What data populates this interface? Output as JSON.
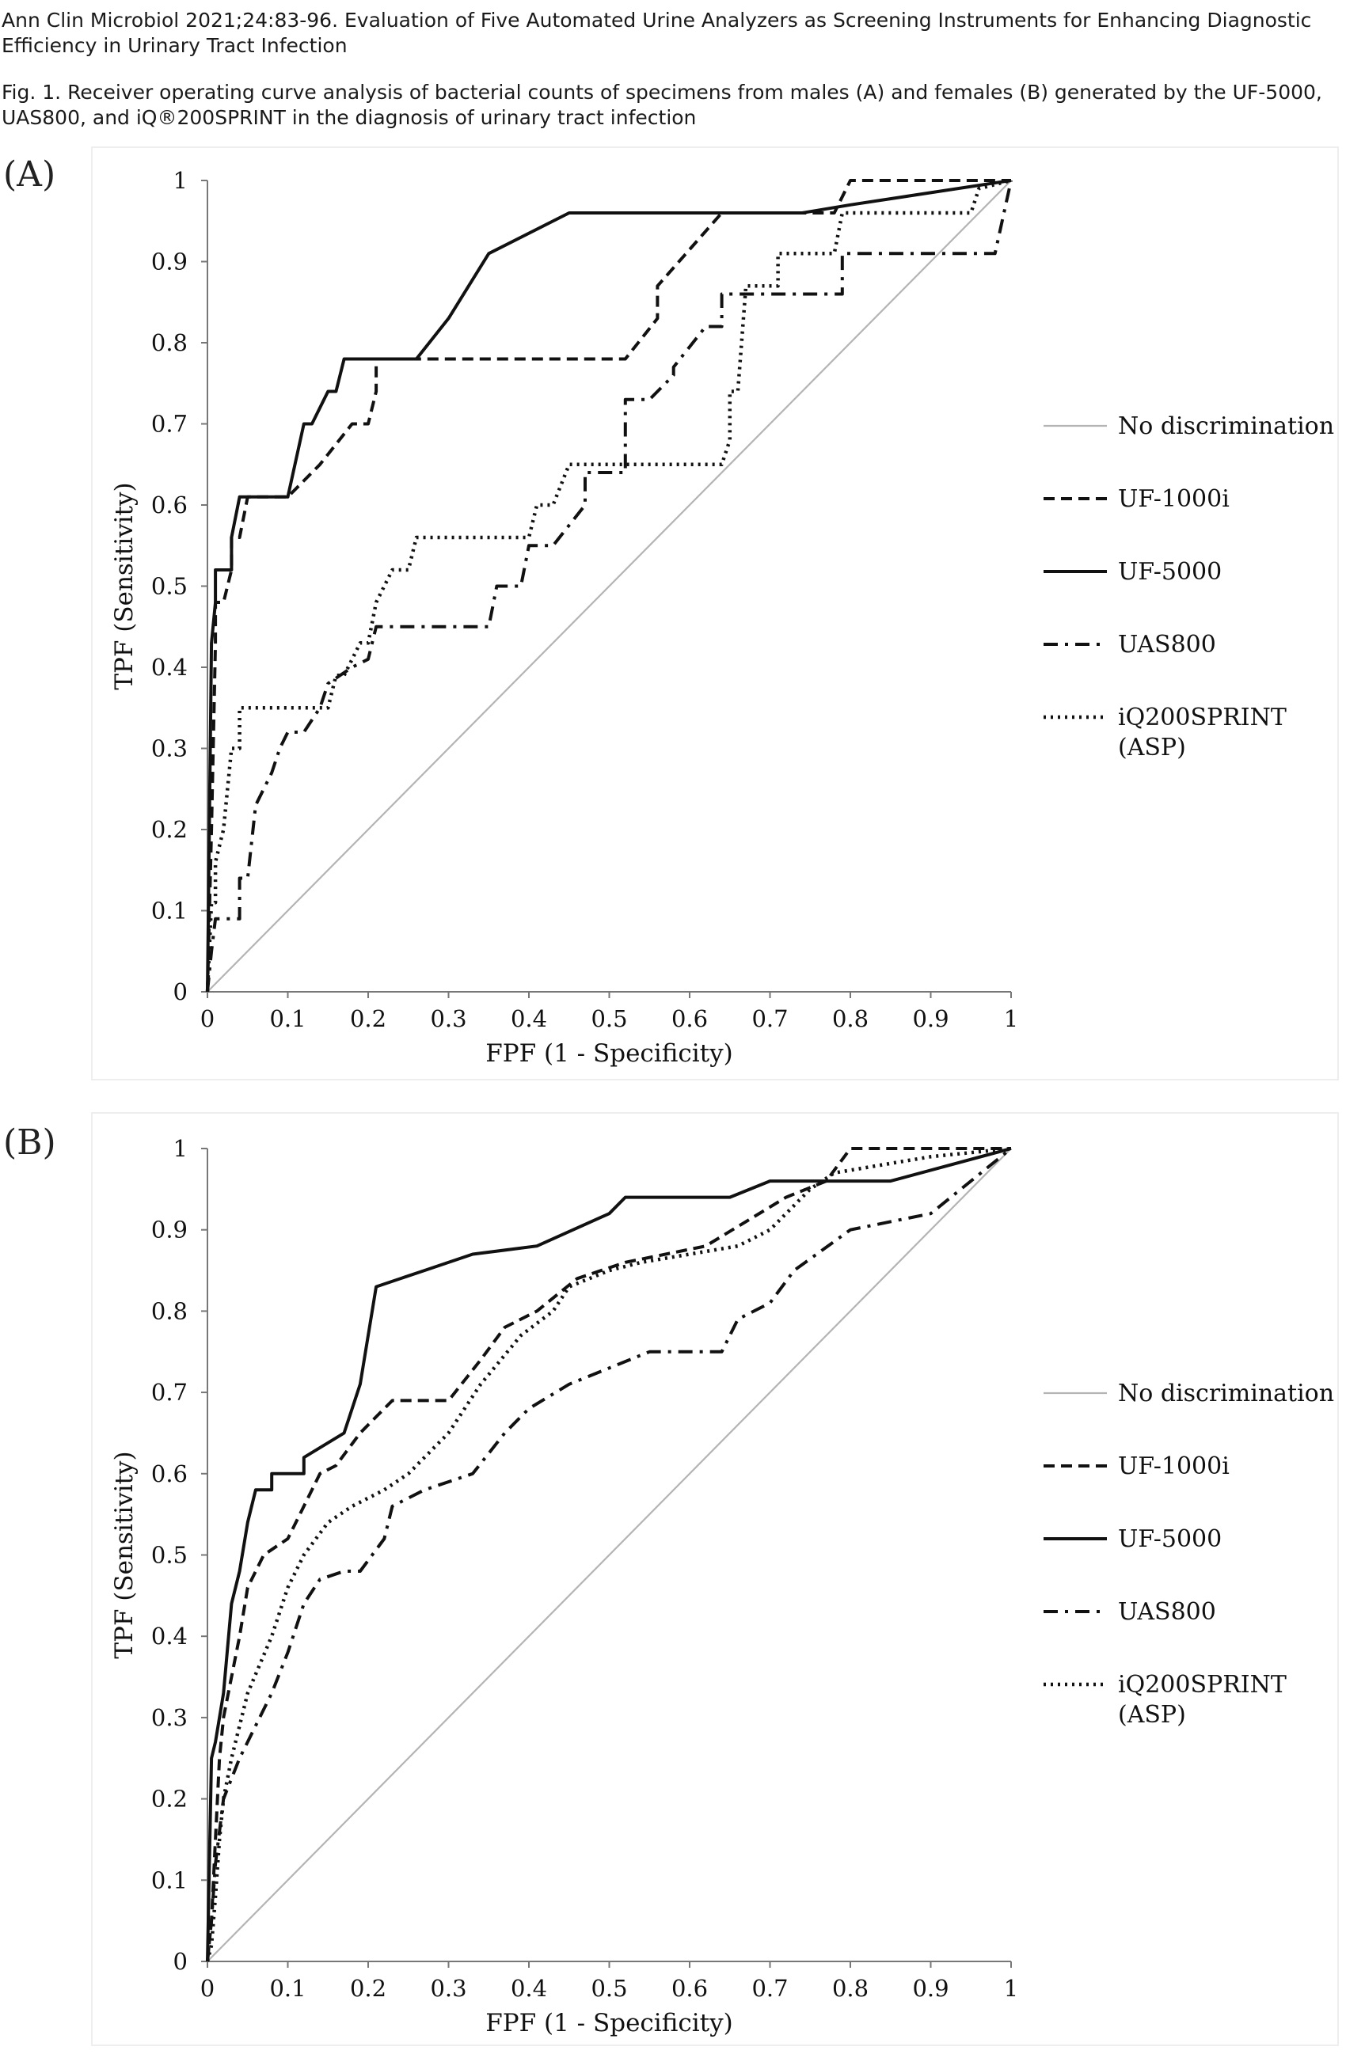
{
  "header": {
    "citation": "Ann Clin Microbiol 2021;24:83-96. Evaluation of Five Automated Urine Analyzers as Screening Instruments for Enhancing Diagnostic Efficiency in Urinary Tract Infection",
    "caption": "Fig. 1. Receiver operating curve analysis of bacterial counts of specimens from males (A) and females (B) generated by the UF-5000, UAS800, and iQ®200SPRINT in the diagnosis of urinary tract infection"
  },
  "chart_data": [
    {
      "panel": "(A)",
      "type": "line",
      "xlabel": "FPF (1 - Specificity)",
      "ylabel": "TPF (Sensitivity)",
      "xlim": [
        0,
        1
      ],
      "ylim": [
        0,
        1
      ],
      "xticks": [
        "0",
        "0.1",
        "0.2",
        "0.3",
        "0.4",
        "0.5",
        "0.6",
        "0.7",
        "0.8",
        "0.9",
        "1"
      ],
      "yticks": [
        "0",
        "0.1",
        "0.2",
        "0.3",
        "0.4",
        "0.5",
        "0.6",
        "0.7",
        "0.8",
        "0.9",
        "1"
      ],
      "grid": false,
      "legend_position": "right",
      "legend_lines": [
        [
          "No discrimination"
        ],
        [
          "UF-1000i"
        ],
        [
          "UF-5000"
        ],
        [
          "UAS800"
        ],
        [
          "iQ200SPRINT",
          "(ASP)"
        ]
      ],
      "series": [
        {
          "name": "No discrimination",
          "style": "solid-gray",
          "x": [
            0,
            1
          ],
          "y": [
            0,
            1
          ]
        },
        {
          "name": "UF-1000i",
          "style": "dashed",
          "x": [
            0,
            0.005,
            0.01,
            0.01,
            0.02,
            0.03,
            0.03,
            0.04,
            0.05,
            0.06,
            0.1,
            0.1,
            0.14,
            0.14,
            0.18,
            0.18,
            0.2,
            0.2,
            0.21,
            0.21,
            0.52,
            0.56,
            0.56,
            0.64,
            0.78,
            0.8,
            0.96,
            1
          ],
          "y": [
            0,
            0.2,
            0.43,
            0.48,
            0.48,
            0.52,
            0.56,
            0.56,
            0.61,
            0.61,
            0.61,
            0.61,
            0.65,
            0.65,
            0.7,
            0.7,
            0.7,
            0.7,
            0.74,
            0.78,
            0.78,
            0.83,
            0.87,
            0.96,
            0.96,
            1,
            1,
            1
          ]
        },
        {
          "name": "UF-5000",
          "style": "solid",
          "x": [
            0,
            0.005,
            0.01,
            0.01,
            0.03,
            0.03,
            0.04,
            0.04,
            0.1,
            0.1,
            0.12,
            0.13,
            0.15,
            0.16,
            0.17,
            0.18,
            0.26,
            0.3,
            0.35,
            0.45,
            0.74,
            0.8,
            1
          ],
          "y": [
            0,
            0.43,
            0.48,
            0.52,
            0.52,
            0.56,
            0.61,
            0.61,
            0.61,
            0.61,
            0.7,
            0.7,
            0.74,
            0.74,
            0.78,
            0.78,
            0.78,
            0.83,
            0.91,
            0.96,
            0.96,
            0.97,
            1
          ]
        },
        {
          "name": "UAS800",
          "style": "dashdot",
          "x": [
            0,
            0.005,
            0.01,
            0.02,
            0.04,
            0.04,
            0.05,
            0.06,
            0.08,
            0.09,
            0.1,
            0.12,
            0.14,
            0.15,
            0.18,
            0.2,
            0.21,
            0.21,
            0.3,
            0.35,
            0.36,
            0.39,
            0.4,
            0.43,
            0.47,
            0.47,
            0.52,
            0.52,
            0.55,
            0.58,
            0.58,
            0.62,
            0.64,
            0.64,
            0.67,
            0.72,
            0.79,
            0.79,
            0.98,
            1
          ],
          "y": [
            0,
            0.05,
            0.09,
            0.09,
            0.09,
            0.14,
            0.14,
            0.23,
            0.27,
            0.3,
            0.32,
            0.32,
            0.35,
            0.38,
            0.4,
            0.41,
            0.45,
            0.45,
            0.45,
            0.45,
            0.5,
            0.5,
            0.55,
            0.55,
            0.6,
            0.64,
            0.64,
            0.73,
            0.73,
            0.76,
            0.77,
            0.82,
            0.82,
            0.86,
            0.86,
            0.86,
            0.86,
            0.91,
            0.91,
            1
          ]
        },
        {
          "name": "iQ200SPRINT (ASP)",
          "style": "dotted",
          "x": [
            0,
            0.005,
            0.01,
            0.01,
            0.02,
            0.03,
            0.04,
            0.04,
            0.1,
            0.15,
            0.16,
            0.17,
            0.19,
            0.2,
            0.21,
            0.23,
            0.25,
            0.26,
            0.36,
            0.4,
            0.41,
            0.43,
            0.45,
            0.52,
            0.57,
            0.6,
            0.64,
            0.65,
            0.65,
            0.66,
            0.67,
            0.71,
            0.71,
            0.78,
            0.79,
            0.95,
            0.96,
            1
          ],
          "y": [
            0,
            0.11,
            0.11,
            0.16,
            0.2,
            0.3,
            0.3,
            0.35,
            0.35,
            0.35,
            0.39,
            0.39,
            0.43,
            0.43,
            0.48,
            0.52,
            0.52,
            0.56,
            0.56,
            0.56,
            0.6,
            0.6,
            0.65,
            0.65,
            0.65,
            0.65,
            0.65,
            0.68,
            0.74,
            0.74,
            0.87,
            0.87,
            0.91,
            0.91,
            0.96,
            0.96,
            0.99,
            1
          ]
        }
      ]
    },
    {
      "panel": "(B)",
      "type": "line",
      "xlabel": "FPF (1 - Specificity)",
      "ylabel": "TPF (Sensitivity)",
      "xlim": [
        0,
        1
      ],
      "ylim": [
        0,
        1
      ],
      "xticks": [
        "0",
        "0.1",
        "0.2",
        "0.3",
        "0.4",
        "0.5",
        "0.6",
        "0.7",
        "0.8",
        "0.9",
        "1"
      ],
      "yticks": [
        "0",
        "0.1",
        "0.2",
        "0.3",
        "0.4",
        "0.5",
        "0.6",
        "0.7",
        "0.8",
        "0.9",
        "1"
      ],
      "grid": false,
      "legend_position": "right",
      "legend_lines": [
        [
          "No discrimination"
        ],
        [
          "UF-1000i"
        ],
        [
          "UF-5000"
        ],
        [
          "UAS800"
        ],
        [
          "iQ200SPRINT",
          "(ASP)"
        ]
      ],
      "series": [
        {
          "name": "No discrimination",
          "style": "solid-gray",
          "x": [
            0,
            1
          ],
          "y": [
            0,
            1
          ]
        },
        {
          "name": "UF-1000i",
          "style": "dashed",
          "x": [
            0,
            0.005,
            0.01,
            0.015,
            0.02,
            0.03,
            0.04,
            0.05,
            0.07,
            0.1,
            0.12,
            0.14,
            0.16,
            0.19,
            0.21,
            0.23,
            0.3,
            0.34,
            0.37,
            0.41,
            0.46,
            0.52,
            0.62,
            0.72,
            0.77,
            0.8,
            0.96,
            1
          ],
          "y": [
            0,
            0.05,
            0.15,
            0.25,
            0.3,
            0.35,
            0.4,
            0.46,
            0.5,
            0.52,
            0.56,
            0.6,
            0.61,
            0.65,
            0.67,
            0.69,
            0.69,
            0.74,
            0.78,
            0.8,
            0.84,
            0.86,
            0.88,
            0.94,
            0.96,
            1,
            1,
            1
          ]
        },
        {
          "name": "UF-5000",
          "style": "solid",
          "x": [
            0,
            0.005,
            0.01,
            0.02,
            0.03,
            0.04,
            0.05,
            0.06,
            0.08,
            0.08,
            0.12,
            0.12,
            0.17,
            0.19,
            0.2,
            0.21,
            0.27,
            0.33,
            0.41,
            0.5,
            0.52,
            0.65,
            0.7,
            0.85,
            1
          ],
          "y": [
            0,
            0.25,
            0.27,
            0.33,
            0.44,
            0.48,
            0.54,
            0.58,
            0.58,
            0.6,
            0.6,
            0.62,
            0.65,
            0.71,
            0.77,
            0.83,
            0.85,
            0.87,
            0.88,
            0.92,
            0.94,
            0.94,
            0.96,
            0.96,
            1
          ]
        },
        {
          "name": "UAS800",
          "style": "dashdot",
          "x": [
            0,
            0.005,
            0.01,
            0.02,
            0.04,
            0.06,
            0.08,
            0.1,
            0.12,
            0.14,
            0.17,
            0.19,
            0.22,
            0.23,
            0.27,
            0.33,
            0.37,
            0.4,
            0.45,
            0.5,
            0.55,
            0.64,
            0.66,
            0.7,
            0.73,
            0.8,
            0.9,
            1
          ],
          "y": [
            0,
            0.05,
            0.12,
            0.2,
            0.25,
            0.29,
            0.33,
            0.38,
            0.44,
            0.47,
            0.48,
            0.48,
            0.52,
            0.56,
            0.58,
            0.6,
            0.65,
            0.68,
            0.71,
            0.73,
            0.75,
            0.75,
            0.79,
            0.81,
            0.85,
            0.9,
            0.92,
            1
          ]
        },
        {
          "name": "iQ200SPRINT (ASP)",
          "style": "dotted",
          "x": [
            0,
            0.005,
            0.01,
            0.015,
            0.02,
            0.03,
            0.05,
            0.08,
            0.1,
            0.12,
            0.15,
            0.18,
            0.22,
            0.25,
            0.3,
            0.34,
            0.39,
            0.43,
            0.45,
            0.5,
            0.54,
            0.6,
            0.66,
            0.7,
            0.75,
            0.78,
            0.9,
            1
          ],
          "y": [
            0,
            0.02,
            0.08,
            0.15,
            0.2,
            0.25,
            0.33,
            0.4,
            0.46,
            0.5,
            0.54,
            0.56,
            0.58,
            0.6,
            0.65,
            0.71,
            0.77,
            0.8,
            0.83,
            0.85,
            0.86,
            0.87,
            0.88,
            0.9,
            0.95,
            0.97,
            0.99,
            1
          ]
        }
      ]
    }
  ]
}
